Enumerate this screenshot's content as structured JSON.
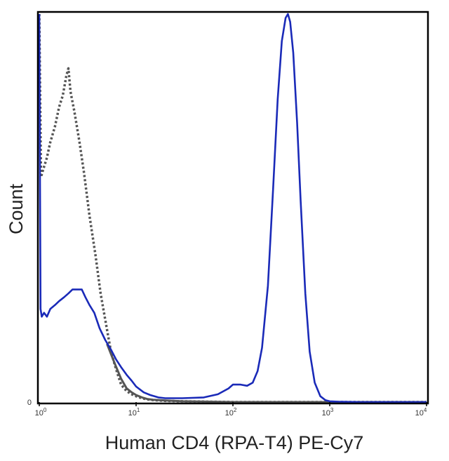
{
  "chart_data": {
    "type": "line",
    "title": "",
    "xlabel": "Human CD4 (RPA-T4) PE-Cy7",
    "ylabel": "Count",
    "x_scale": "log",
    "xlim": [
      1,
      10000
    ],
    "ylim": [
      0,
      1
    ],
    "y_ticks": [
      {
        "value": 0,
        "label": "0"
      }
    ],
    "x_ticks": [
      {
        "value": 1,
        "base": "10",
        "exp": "0"
      },
      {
        "value": 10,
        "base": "10",
        "exp": "1"
      },
      {
        "value": 100,
        "base": "10",
        "exp": "2"
      },
      {
        "value": 1000,
        "base": "10",
        "exp": "3"
      },
      {
        "value": 10000,
        "base": "10",
        "exp": "4"
      }
    ],
    "grid": false,
    "legend": "none",
    "series": [
      {
        "style": "dotted",
        "color": "#555555",
        "x": [
          1.0,
          1.04,
          1.1,
          1.2,
          1.3,
          1.45,
          1.6,
          1.75,
          1.9,
          2.0,
          2.1,
          2.3,
          2.6,
          2.9,
          3.3,
          3.8,
          4.3,
          4.9,
          5.5,
          6.2,
          7.0,
          8.0,
          9.0,
          10.0,
          11.5,
          13.0,
          15.0,
          20.0,
          30.0,
          50.0,
          100.0,
          300.0,
          1000.0,
          10000.0
        ],
        "y": [
          1.0,
          0.58,
          0.6,
          0.63,
          0.67,
          0.71,
          0.76,
          0.79,
          0.84,
          0.86,
          0.8,
          0.75,
          0.67,
          0.59,
          0.48,
          0.38,
          0.28,
          0.2,
          0.13,
          0.085,
          0.045,
          0.028,
          0.02,
          0.015,
          0.01,
          0.007,
          0.005,
          0.003,
          0.002,
          0.001,
          0.0,
          0.0,
          0.0,
          0.0
        ]
      },
      {
        "style": "solid",
        "color": "#555555",
        "x": [
          5.0,
          6.0,
          7.0,
          8.0,
          9.0,
          10.0,
          11.5,
          13.0,
          15.0,
          20.0,
          30.0,
          50.0,
          100.0,
          1000.0,
          10000.0
        ],
        "y": [
          0.15,
          0.1,
          0.06,
          0.035,
          0.025,
          0.018,
          0.012,
          0.008,
          0.006,
          0.004,
          0.002,
          0.001,
          0.0,
          0.0,
          0.0
        ]
      },
      {
        "style": "solid",
        "color": "#1a2ab8",
        "x": [
          1.0,
          1.03,
          1.06,
          1.12,
          1.2,
          1.3,
          1.45,
          1.6,
          1.8,
          2.0,
          2.2,
          2.5,
          2.75,
          3.0,
          3.3,
          3.7,
          4.2,
          4.8,
          5.5,
          6.2,
          7.0,
          8.0,
          9.0,
          10.0,
          12.0,
          14.0,
          17.0,
          20.0,
          30.0,
          50.0,
          70.0,
          90.0,
          100.0,
          120.0,
          140.0,
          160.0,
          180.0,
          200.0,
          230.0,
          260.0,
          290.0,
          320.0,
          350.0,
          370.0,
          390.0,
          420.0,
          460.0,
          500.0,
          560.0,
          620.0,
          700.0,
          800.0,
          900.0,
          1000.0,
          1200.0,
          2000.0,
          10000.0
        ],
        "y": [
          1.0,
          0.24,
          0.22,
          0.23,
          0.22,
          0.24,
          0.25,
          0.26,
          0.27,
          0.28,
          0.29,
          0.29,
          0.29,
          0.27,
          0.25,
          0.23,
          0.19,
          0.16,
          0.135,
          0.11,
          0.09,
          0.07,
          0.055,
          0.04,
          0.025,
          0.018,
          0.012,
          0.01,
          0.01,
          0.012,
          0.02,
          0.035,
          0.045,
          0.045,
          0.042,
          0.05,
          0.08,
          0.14,
          0.3,
          0.55,
          0.78,
          0.93,
          0.99,
          1.0,
          0.98,
          0.9,
          0.72,
          0.52,
          0.28,
          0.13,
          0.05,
          0.015,
          0.005,
          0.002,
          0.001,
          0.0,
          0.0
        ]
      }
    ]
  }
}
